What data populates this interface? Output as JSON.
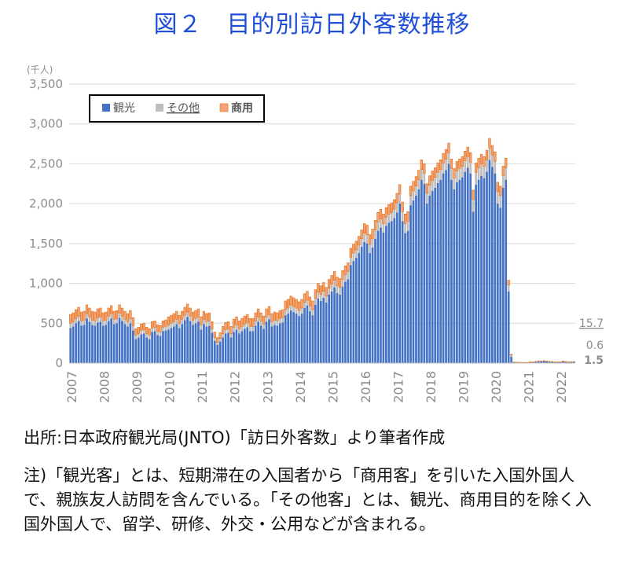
{
  "title": "図２　目的別訪日外客数推移",
  "source": "出所:日本政府観光局(JNTO)「訪日外客数」より筆者作成",
  "note": "注)「観光客」とは、短期滞在の入国者から「商用客」を引いた入国外国人で、親族友人訪問を含んでいる。「その他客」とは、観光、商用目的を除く入国外国人で、留学、研修、外交・公用などが含まれる。",
  "colors": {
    "tourism": "#4472c4",
    "other": "#bfbfbf",
    "business": "#f4a37a",
    "business_edge": "#e36c09",
    "grid": "#d9d9d9",
    "axis_text": "#8c8c8c"
  },
  "chart_data": {
    "type": "bar",
    "stacked": true,
    "unit_label": "(千人)",
    "ylim": [
      0,
      3500
    ],
    "yticks": [
      "0",
      "500",
      "1,000",
      "1,500",
      "2,000",
      "2,500",
      "3,000",
      "3,500"
    ],
    "xticks": [
      "2007",
      "2008",
      "2009",
      "2010",
      "2011",
      "2012",
      "2013",
      "2014",
      "2015",
      "2016",
      "2017",
      "2018",
      "2019",
      "2020",
      "2021",
      "2022"
    ],
    "legend": [
      "観光",
      "その他",
      "商用"
    ],
    "legend_placement": "top-left",
    "grid": true,
    "end_labels": [
      "15.7",
      "0.6",
      "1.5"
    ],
    "series": [
      {
        "name": "観光",
        "values": [
          440,
          460,
          500,
          530,
          470,
          480,
          560,
          520,
          480,
          470,
          510,
          520,
          470,
          480,
          530,
          560,
          490,
          500,
          570,
          530,
          490,
          460,
          500,
          410,
          300,
          320,
          360,
          370,
          320,
          300,
          390,
          400,
          350,
          340,
          400,
          410,
          420,
          440,
          460,
          490,
          440,
          490,
          540,
          580,
          530,
          480,
          500,
          520,
          420,
          490,
          460,
          470,
          380,
          280,
          230,
          270,
          320,
          370,
          380,
          320,
          390,
          420,
          370,
          400,
          430,
          450,
          400,
          400,
          470,
          520,
          470,
          430,
          520,
          550,
          460,
          480,
          470,
          500,
          510,
          600,
          620,
          660,
          640,
          620,
          590,
          620,
          690,
          720,
          650,
          600,
          730,
          810,
          780,
          820,
          760,
          860,
          900,
          950,
          880,
          860,
          960,
          1020,
          1050,
          1230,
          1280,
          1320,
          1380,
          1460,
          1520,
          1500,
          1380,
          1450,
          1560,
          1660,
          1700,
          1640,
          1720,
          1760,
          1780,
          1820,
          1890,
          2000,
          1780,
          1630,
          1660,
          1980,
          2040,
          2100,
          2180,
          2300,
          2250,
          2000,
          2100,
          2160,
          2200,
          2260,
          2300,
          2380,
          2420,
          2500,
          2300,
          2180,
          2270,
          2300,
          2330,
          2400,
          2450,
          2380,
          1900,
          2240,
          2300,
          2350,
          2320,
          2400,
          2550,
          2460,
          2380,
          2000,
          1950,
          2200,
          2300,
          900,
          80,
          10,
          8,
          8,
          5,
          5,
          5,
          10,
          10,
          15,
          20,
          20,
          25,
          20,
          15,
          15,
          10,
          10,
          12,
          20,
          15,
          10,
          14,
          15.7
        ]
      },
      {
        "name": "その他",
        "values": [
          60,
          60,
          60,
          60,
          60,
          60,
          60,
          60,
          60,
          60,
          60,
          60,
          60,
          60,
          60,
          60,
          60,
          60,
          60,
          60,
          60,
          60,
          60,
          60,
          50,
          50,
          50,
          50,
          50,
          50,
          50,
          50,
          50,
          50,
          50,
          50,
          60,
          60,
          60,
          60,
          60,
          60,
          60,
          60,
          60,
          60,
          60,
          60,
          60,
          60,
          60,
          60,
          50,
          40,
          30,
          40,
          50,
          50,
          50,
          50,
          60,
          60,
          60,
          60,
          60,
          60,
          60,
          60,
          60,
          60,
          60,
          60,
          60,
          60,
          60,
          60,
          60,
          60,
          60,
          70,
          70,
          70,
          70,
          70,
          70,
          70,
          70,
          70,
          70,
          70,
          80,
          80,
          80,
          80,
          80,
          80,
          90,
          90,
          90,
          90,
          90,
          90,
          100,
          100,
          100,
          100,
          100,
          100,
          110,
          110,
          110,
          110,
          110,
          110,
          110,
          110,
          110,
          110,
          110,
          110,
          120,
          120,
          120,
          120,
          120,
          120,
          120,
          120,
          120,
          130,
          130,
          130,
          130,
          130,
          130,
          130,
          130,
          130,
          140,
          140,
          140,
          140,
          140,
          140,
          140,
          140,
          140,
          140,
          150,
          150,
          150,
          150,
          150,
          150,
          150,
          150,
          150,
          150,
          150,
          150,
          150,
          80,
          20,
          2,
          2,
          2,
          2,
          2,
          2,
          2,
          2,
          2,
          3,
          3,
          3,
          3,
          3,
          2,
          2,
          2,
          2,
          2,
          2,
          2,
          1,
          0.6
        ]
      },
      {
        "name": "商用",
        "values": [
          110,
          110,
          110,
          110,
          110,
          110,
          110,
          110,
          110,
          110,
          110,
          110,
          100,
          100,
          100,
          100,
          100,
          100,
          100,
          100,
          100,
          100,
          100,
          100,
          80,
          80,
          80,
          80,
          80,
          80,
          80,
          80,
          80,
          80,
          80,
          80,
          100,
          100,
          100,
          100,
          100,
          100,
          100,
          100,
          100,
          100,
          100,
          100,
          100,
          100,
          100,
          100,
          90,
          70,
          60,
          70,
          90,
          90,
          90,
          90,
          100,
          100,
          100,
          100,
          100,
          100,
          100,
          100,
          100,
          100,
          100,
          100,
          100,
          100,
          100,
          100,
          100,
          100,
          100,
          110,
          110,
          110,
          110,
          110,
          110,
          110,
          110,
          110,
          110,
          110,
          110,
          110,
          110,
          110,
          110,
          110,
          110,
          110,
          110,
          110,
          110,
          110,
          110,
          110,
          110,
          110,
          110,
          110,
          120,
          120,
          120,
          120,
          120,
          120,
          120,
          120,
          120,
          120,
          120,
          120,
          120,
          120,
          120,
          120,
          120,
          120,
          120,
          120,
          120,
          120,
          120,
          120,
          120,
          120,
          120,
          120,
          120,
          120,
          120,
          120,
          120,
          120,
          120,
          120,
          120,
          120,
          120,
          120,
          120,
          120,
          120,
          120,
          120,
          120,
          120,
          120,
          120,
          120,
          120,
          120,
          120,
          60,
          10,
          1,
          1,
          1,
          1,
          1,
          1,
          2,
          2,
          2,
          2,
          2,
          2,
          2,
          2,
          2,
          2,
          2,
          2,
          2,
          2,
          2,
          1.5,
          1.5
        ]
      }
    ]
  }
}
